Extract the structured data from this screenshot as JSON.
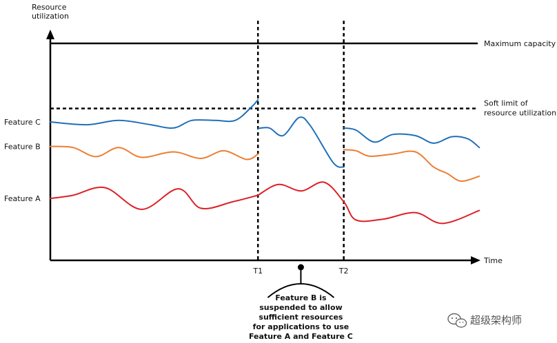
{
  "chart_data": {
    "type": "line",
    "title": "",
    "ylabel": "Resource utilization",
    "xlabel": "Time",
    "x_ticks": [
      "T1",
      "T2"
    ],
    "reference_lines": [
      {
        "name": "maximum-capacity",
        "label": "Maximum capacity",
        "style": "solid",
        "value": 1.0
      },
      {
        "name": "soft-limit",
        "label": "Soft limit of resource utilization",
        "style": "dashed",
        "value": 0.7
      }
    ],
    "series": [
      {
        "name": "Feature C",
        "color": "#1f6fb8",
        "segments": [
          [
            [
              0,
              0.638
            ],
            [
              0.08,
              0.625
            ],
            [
              0.15,
              0.645
            ],
            [
              0.22,
              0.625
            ],
            [
              0.27,
              0.61
            ],
            [
              0.31,
              0.645
            ],
            [
              0.36,
              0.645
            ],
            [
              0.405,
              0.645
            ],
            [
              0.44,
              0.705
            ],
            [
              0.455,
              0.74
            ]
          ],
          [
            [
              0.455,
              0.608
            ],
            [
              0.48,
              0.61
            ],
            [
              0.51,
              0.575
            ],
            [
              0.545,
              0.658
            ],
            [
              0.57,
              0.62
            ],
            [
              0.62,
              0.45
            ],
            [
              0.643,
              0.43
            ]
          ],
          [
            [
              0.643,
              0.61
            ],
            [
              0.67,
              0.6
            ],
            [
              0.71,
              0.545
            ],
            [
              0.75,
              0.58
            ],
            [
              0.8,
              0.575
            ],
            [
              0.84,
              0.54
            ],
            [
              0.88,
              0.57
            ],
            [
              0.915,
              0.56
            ],
            [
              0.94,
              0.52
            ]
          ]
        ]
      },
      {
        "name": "Feature B",
        "color": "#ed7d31",
        "segments": [
          [
            [
              0,
              0.525
            ],
            [
              0.05,
              0.52
            ],
            [
              0.1,
              0.478
            ],
            [
              0.15,
              0.52
            ],
            [
              0.2,
              0.475
            ],
            [
              0.27,
              0.5
            ],
            [
              0.33,
              0.47
            ],
            [
              0.38,
              0.505
            ],
            [
              0.43,
              0.465
            ],
            [
              0.455,
              0.49
            ]
          ],
          [
            [
              0.643,
              0.51
            ],
            [
              0.67,
              0.505
            ],
            [
              0.7,
              0.48
            ],
            [
              0.75,
              0.49
            ],
            [
              0.8,
              0.5
            ],
            [
              0.84,
              0.43
            ],
            [
              0.87,
              0.4
            ],
            [
              0.9,
              0.365
            ],
            [
              0.94,
              0.388
            ]
          ]
        ]
      },
      {
        "name": "Feature A",
        "color": "#dd1f26",
        "segments": [
          [
            [
              0,
              0.285
            ],
            [
              0.05,
              0.3
            ],
            [
              0.12,
              0.335
            ],
            [
              0.2,
              0.235
            ],
            [
              0.28,
              0.33
            ],
            [
              0.33,
              0.24
            ],
            [
              0.4,
              0.27
            ],
            [
              0.455,
              0.3
            ]
          ],
          [
            [
              0.455,
              0.3
            ],
            [
              0.5,
              0.35
            ],
            [
              0.55,
              0.32
            ],
            [
              0.6,
              0.36
            ],
            [
              0.643,
              0.27
            ],
            [
              0.67,
              0.186
            ],
            [
              0.73,
              0.19
            ],
            [
              0.8,
              0.22
            ],
            [
              0.86,
              0.17
            ],
            [
              0.94,
              0.23
            ]
          ]
        ]
      }
    ],
    "event_lines": [
      {
        "label": "T1",
        "x": 0.455
      },
      {
        "label": "T2",
        "x": 0.643
      }
    ],
    "annotation": {
      "lines": [
        "Feature B is",
        "suspended to allow",
        "sufficient resources",
        "for applications to use",
        "Feature A and Feature C"
      ],
      "x": 0.549
    }
  },
  "watermark": "超级架构师",
  "watermark_icon": "wechat-icon"
}
